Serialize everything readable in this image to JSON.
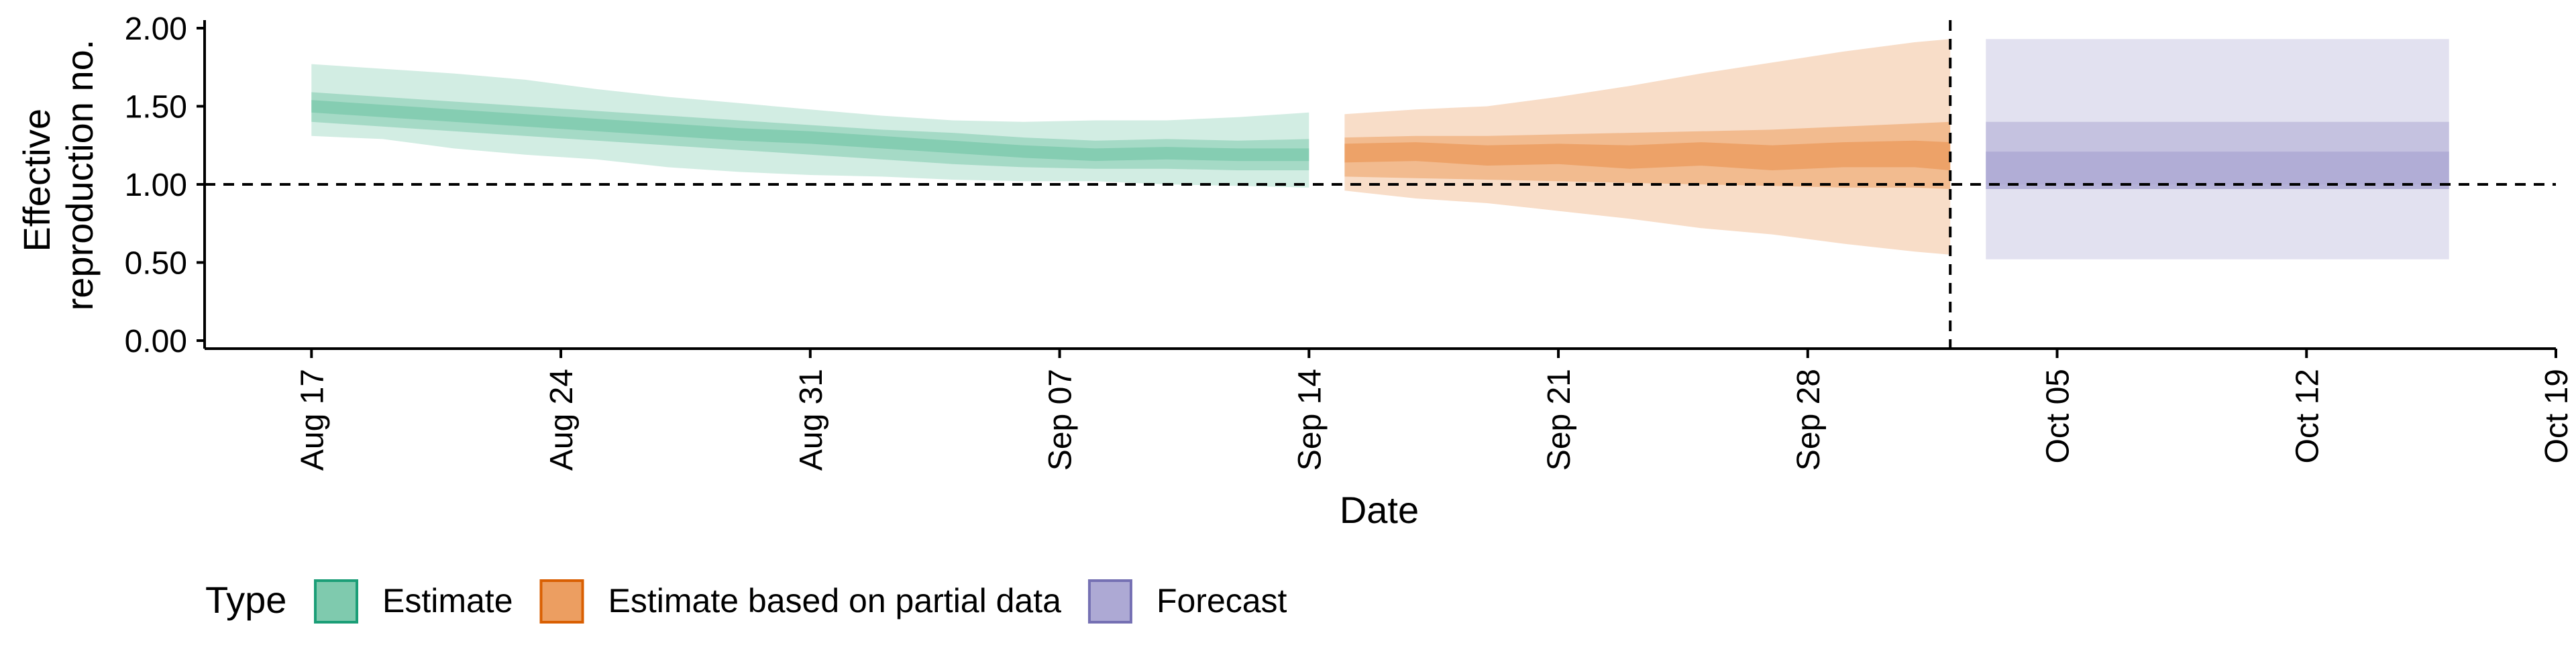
{
  "chart_data": {
    "type": "area",
    "xlabel": "Date",
    "ylabel_lines": [
      "Effective",
      "reproduction no."
    ],
    "ylim": [
      0,
      2.0
    ],
    "y_ticks": [
      "0.00",
      "0.50",
      "1.00",
      "1.50",
      "2.00"
    ],
    "x_range": [
      "2020-08-14",
      "2020-10-19"
    ],
    "x_ticks": [
      {
        "date": "2020-08-17",
        "label": "Aug 17"
      },
      {
        "date": "2020-08-24",
        "label": "Aug 24"
      },
      {
        "date": "2020-08-31",
        "label": "Aug 31"
      },
      {
        "date": "2020-09-07",
        "label": "Sep 07"
      },
      {
        "date": "2020-09-14",
        "label": "Sep 14"
      },
      {
        "date": "2020-09-21",
        "label": "Sep 21"
      },
      {
        "date": "2020-09-28",
        "label": "Sep 28"
      },
      {
        "date": "2020-10-05",
        "label": "Oct 05"
      },
      {
        "date": "2020-10-12",
        "label": "Oct 12"
      },
      {
        "date": "2020-10-19",
        "label": "Oct 19"
      }
    ],
    "reference_hline": 1.0,
    "reference_vline_date": "2020-10-02",
    "grid": false,
    "legend": {
      "position": "bottom-left",
      "title": "Type",
      "entries": [
        "Estimate",
        "Estimate based on partial data",
        "Forecast"
      ]
    },
    "series": [
      {
        "name": "Estimate",
        "color": "#1b9e77",
        "fill": "#7fcaae",
        "dates": [
          "2020-08-17",
          "2020-08-19",
          "2020-08-21",
          "2020-08-23",
          "2020-08-25",
          "2020-08-27",
          "2020-08-29",
          "2020-08-31",
          "2020-09-02",
          "2020-09-04",
          "2020-09-06",
          "2020-09-08",
          "2020-09-10",
          "2020-09-12",
          "2020-09-14"
        ],
        "median": [
          1.5,
          1.47,
          1.44,
          1.41,
          1.38,
          1.35,
          1.32,
          1.3,
          1.27,
          1.24,
          1.21,
          1.19,
          1.2,
          1.19,
          1.19
        ],
        "inner_low": [
          1.46,
          1.43,
          1.4,
          1.37,
          1.34,
          1.31,
          1.28,
          1.26,
          1.23,
          1.2,
          1.17,
          1.15,
          1.16,
          1.15,
          1.15
        ],
        "inner_high": [
          1.54,
          1.51,
          1.48,
          1.45,
          1.42,
          1.39,
          1.36,
          1.34,
          1.31,
          1.28,
          1.25,
          1.23,
          1.24,
          1.23,
          1.23
        ],
        "mid_low": [
          1.4,
          1.37,
          1.34,
          1.31,
          1.28,
          1.25,
          1.22,
          1.19,
          1.16,
          1.13,
          1.11,
          1.1,
          1.1,
          1.09,
          1.09
        ],
        "mid_high": [
          1.59,
          1.56,
          1.53,
          1.5,
          1.47,
          1.44,
          1.41,
          1.38,
          1.35,
          1.33,
          1.3,
          1.28,
          1.29,
          1.28,
          1.29
        ],
        "outer_low": [
          1.31,
          1.29,
          1.23,
          1.19,
          1.16,
          1.11,
          1.08,
          1.06,
          1.05,
          1.03,
          1.02,
          1.02,
          1.0,
          0.99,
          0.98
        ],
        "outer_high": [
          1.77,
          1.74,
          1.71,
          1.67,
          1.61,
          1.56,
          1.52,
          1.48,
          1.44,
          1.41,
          1.4,
          1.41,
          1.41,
          1.43,
          1.46
        ]
      },
      {
        "name": "Estimate based on partial data",
        "color": "#d95f02",
        "fill": "#ec9e61",
        "dates": [
          "2020-09-15",
          "2020-09-17",
          "2020-09-19",
          "2020-09-21",
          "2020-09-23",
          "2020-09-25",
          "2020-09-27",
          "2020-09-29",
          "2020-10-01",
          "2020-10-02"
        ],
        "median": [
          1.2,
          1.21,
          1.19,
          1.2,
          1.18,
          1.2,
          1.17,
          1.19,
          1.2,
          1.18
        ],
        "inner_low": [
          1.14,
          1.15,
          1.12,
          1.13,
          1.1,
          1.12,
          1.09,
          1.11,
          1.11,
          1.09
        ],
        "inner_high": [
          1.26,
          1.27,
          1.25,
          1.26,
          1.25,
          1.27,
          1.25,
          1.27,
          1.28,
          1.27
        ],
        "mid_low": [
          1.05,
          1.04,
          1.03,
          1.02,
          1.01,
          1.0,
          0.99,
          0.98,
          0.98,
          0.97
        ],
        "mid_high": [
          1.3,
          1.31,
          1.31,
          1.32,
          1.33,
          1.34,
          1.35,
          1.37,
          1.39,
          1.4
        ],
        "outer_low": [
          0.96,
          0.91,
          0.88,
          0.83,
          0.78,
          0.72,
          0.68,
          0.62,
          0.57,
          0.55
        ],
        "outer_high": [
          1.45,
          1.48,
          1.5,
          1.56,
          1.63,
          1.71,
          1.78,
          1.85,
          1.91,
          1.93
        ]
      },
      {
        "name": "Forecast",
        "color": "#7570b3",
        "fill": "#ada9d4",
        "dates": [
          "2020-10-03",
          "2020-10-16"
        ],
        "median": [
          1.09,
          1.09
        ],
        "inner_low": [
          0.97,
          0.97
        ],
        "inner_high": [
          1.21,
          1.21
        ],
        "mid_low": [
          1.0,
          1.0
        ],
        "mid_high": [
          1.4,
          1.4
        ],
        "outer_low": [
          0.52,
          0.52
        ],
        "outer_high": [
          1.93,
          1.93
        ]
      }
    ]
  }
}
